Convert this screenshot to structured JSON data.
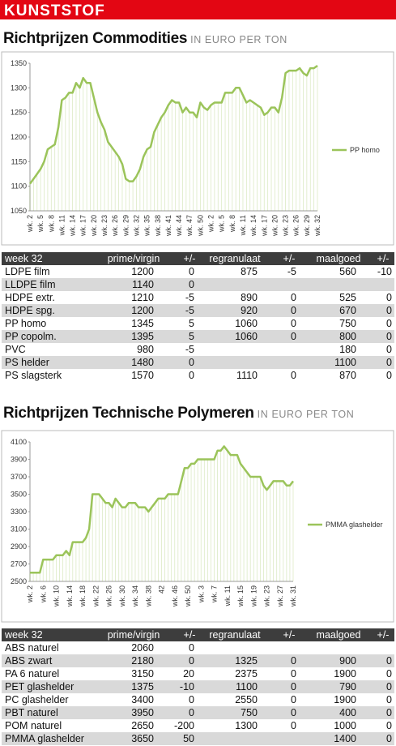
{
  "banner": "KUNSTSTOF",
  "chart_data": [
    {
      "type": "line",
      "title": "Richtprijzen Commodities",
      "subtitle": "IN EURO PER TON",
      "categories": [
        "wk. 2",
        null,
        null,
        "wk. 5",
        null,
        null,
        "wk. 8",
        null,
        null,
        "wk. 11",
        null,
        null,
        "wk. 14",
        null,
        null,
        "wk. 17",
        null,
        null,
        "wk. 20",
        null,
        null,
        "wk. 23",
        null,
        null,
        "wk. 26",
        null,
        null,
        "wk. 29",
        null,
        null,
        "wk. 32",
        null,
        null,
        "wk. 35",
        null,
        null,
        "wk. 38",
        null,
        null,
        "wk. 41",
        null,
        null,
        "wk. 44",
        null,
        null,
        "wk. 47",
        null,
        null,
        "wk. 50",
        null,
        null,
        "wk. 2",
        null,
        null,
        "wk. 5",
        null,
        null,
        "wk. 8",
        null,
        null,
        "wk. 11",
        null,
        null,
        "wk. 14",
        null,
        null,
        "wk. 17",
        null,
        null,
        "wk. 20",
        null,
        null,
        "wk. 23",
        null,
        null,
        "wk. 26",
        null,
        null,
        "wk. 29",
        null,
        null,
        "wk. 32"
      ],
      "series": [
        {
          "name": "PP homo",
          "color": "#9bc45a",
          "values": [
            1105,
            1115,
            1125,
            1135,
            1150,
            1175,
            1180,
            1185,
            1220,
            1275,
            1280,
            1290,
            1290,
            1310,
            1300,
            1320,
            1310,
            1310,
            1280,
            1250,
            1230,
            1215,
            1190,
            1180,
            1170,
            1160,
            1145,
            1115,
            1110,
            1110,
            1120,
            1135,
            1160,
            1175,
            1180,
            1210,
            1225,
            1240,
            1250,
            1265,
            1275,
            1270,
            1270,
            1250,
            1260,
            1250,
            1250,
            1240,
            1270,
            1260,
            1255,
            1265,
            1270,
            1270,
            1270,
            1290,
            1290,
            1290,
            1300,
            1300,
            1285,
            1270,
            1275,
            1270,
            1265,
            1260,
            1245,
            1250,
            1260,
            1260,
            1250,
            1280,
            1330,
            1335,
            1335,
            1335,
            1340,
            1330,
            1325,
            1340,
            1340,
            1345
          ]
        }
      ],
      "ylim": [
        1050,
        1350
      ],
      "yticks": [
        1050,
        1100,
        1150,
        1200,
        1250,
        1300,
        1350
      ],
      "drop_lines": true,
      "legend": "right"
    },
    {
      "type": "line",
      "title": "Richtprijzen Technische Polymeren",
      "subtitle": "IN EURO PER TON",
      "categories": [
        "wk. 2",
        null,
        null,
        null,
        "wk. 6",
        null,
        null,
        null,
        "wk. 10",
        null,
        null,
        null,
        "wk. 14",
        null,
        null,
        null,
        "wk. 18",
        null,
        null,
        null,
        "wk. 22",
        null,
        null,
        null,
        "wk. 26",
        null,
        null,
        null,
        "wk. 30",
        null,
        null,
        null,
        "wk. 34",
        null,
        null,
        null,
        "wk. 38",
        null,
        null,
        null,
        "42",
        null,
        null,
        null,
        "wk. 46",
        null,
        null,
        null,
        "wk. 50",
        null,
        null,
        null,
        "wk. 3",
        null,
        null,
        null,
        "wk. 7",
        null,
        null,
        null,
        "wk. 11",
        null,
        null,
        null,
        "wk. 15",
        null,
        null,
        null,
        "wk. 19",
        null,
        null,
        null,
        "wk. 23",
        null,
        null,
        null,
        "wk. 27",
        null,
        null,
        null,
        "wk. 31"
      ],
      "series": [
        {
          "name": "PMMA glashelder",
          "color": "#9bc45a",
          "values": [
            2600,
            2600,
            2600,
            2600,
            2750,
            2750,
            2750,
            2750,
            2800,
            2800,
            2800,
            2850,
            2800,
            2950,
            2950,
            2950,
            2950,
            3000,
            3100,
            3500,
            3500,
            3500,
            3450,
            3400,
            3400,
            3350,
            3450,
            3400,
            3350,
            3350,
            3400,
            3400,
            3400,
            3350,
            3350,
            3350,
            3300,
            3350,
            3400,
            3450,
            3450,
            3450,
            3500,
            3500,
            3500,
            3500,
            3650,
            3800,
            3800,
            3850,
            3850,
            3900,
            3900,
            3900,
            3900,
            3900,
            3900,
            4000,
            4000,
            4050,
            4000,
            3950,
            3950,
            3950,
            3850,
            3800,
            3750,
            3700,
            3700,
            3700,
            3700,
            3600,
            3550,
            3600,
            3650,
            3650,
            3650,
            3650,
            3600,
            3600,
            3650
          ]
        }
      ],
      "ylim": [
        2500,
        4100
      ],
      "yticks": [
        2500,
        2700,
        2900,
        3100,
        3300,
        3500,
        3700,
        3900,
        4100
      ],
      "drop_lines": true,
      "legend": "right"
    }
  ],
  "tables": [
    {
      "columns": [
        "week 32",
        "prime/virgin",
        "+/-",
        "regranulaat",
        "+/-",
        "maalgoed",
        "+/-"
      ],
      "rows": [
        [
          "LDPE film",
          1200,
          0,
          875,
          -5,
          560,
          -10
        ],
        [
          "LLDPE film",
          1140,
          0,
          null,
          null,
          null,
          null
        ],
        [
          "HDPE extr.",
          1210,
          -5,
          890,
          0,
          525,
          0
        ],
        [
          "HDPE spg.",
          1200,
          -5,
          920,
          0,
          670,
          0
        ],
        [
          "PP homo",
          1345,
          5,
          1060,
          0,
          750,
          0
        ],
        [
          "PP copolm.",
          1395,
          5,
          1060,
          0,
          800,
          0
        ],
        [
          "PVC",
          980,
          -5,
          null,
          null,
          180,
          0
        ],
        [
          "PS helder",
          1480,
          0,
          null,
          null,
          1100,
          0
        ],
        [
          "PS slagsterk",
          1570,
          0,
          1110,
          0,
          870,
          0
        ]
      ]
    },
    {
      "columns": [
        "week 32",
        "prime/virgin",
        "+/-",
        "regranulaat",
        "+/-",
        "maalgoed",
        "+/-"
      ],
      "rows": [
        [
          "ABS naturel",
          2060,
          0,
          null,
          null,
          null,
          null
        ],
        [
          "ABS zwart",
          2180,
          0,
          1325,
          0,
          900,
          0
        ],
        [
          "PA 6 naturel",
          3150,
          20,
          2375,
          0,
          1900,
          0
        ],
        [
          "PET glashelder",
          1375,
          -10,
          1100,
          0,
          790,
          0
        ],
        [
          "PC glashelder",
          3400,
          0,
          2550,
          0,
          1900,
          0
        ],
        [
          "PBT naturel",
          3950,
          0,
          750,
          0,
          400,
          0
        ],
        [
          "POM naturel",
          2650,
          -200,
          1300,
          0,
          1000,
          0
        ],
        [
          "PMMA glashelder",
          3650,
          50,
          null,
          null,
          1400,
          0
        ]
      ]
    }
  ]
}
